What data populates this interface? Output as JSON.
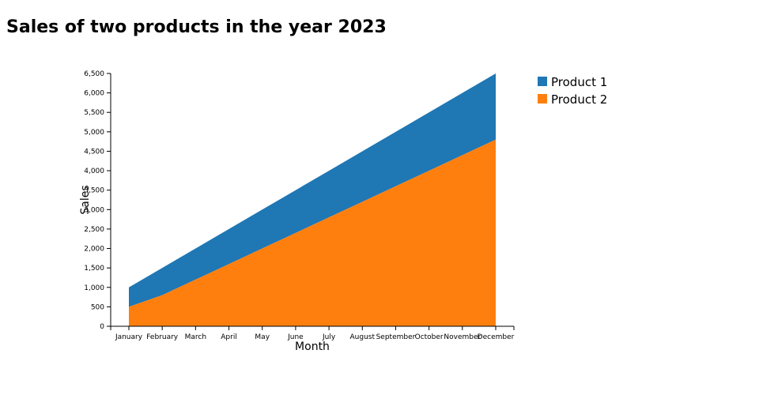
{
  "chart_data": {
    "type": "area",
    "stacked": true,
    "title": "Sales of two products in the year 2023",
    "xlabel": "Month",
    "ylabel": "Sales",
    "categories": [
      "January",
      "February",
      "March",
      "April",
      "May",
      "June",
      "July",
      "August",
      "September",
      "October",
      "November",
      "December"
    ],
    "ylim": [
      0,
      6500
    ],
    "yticks": [
      0,
      500,
      1000,
      1500,
      2000,
      2500,
      3000,
      3500,
      4000,
      4500,
      5000,
      5500,
      6000,
      6500
    ],
    "ytick_labels": [
      "0",
      "500",
      "1,000",
      "1,500",
      "2,000",
      "2,500",
      "3,000",
      "3,500",
      "4,000",
      "4,500",
      "5,000",
      "5,500",
      "6,000",
      "6,500"
    ],
    "series": [
      {
        "name": "Product 1",
        "color": "#1f77b4",
        "values": [
          500,
          700,
          800,
          900,
          1000,
          1100,
          1200,
          1300,
          1400,
          1500,
          1600,
          1700
        ]
      },
      {
        "name": "Product 2",
        "color": "#ff7f0e",
        "values": [
          500,
          800,
          1200,
          1600,
          2000,
          2400,
          2800,
          3200,
          3600,
          4000,
          4400,
          4800
        ]
      }
    ],
    "grid": false,
    "legend_position": "top-right"
  }
}
